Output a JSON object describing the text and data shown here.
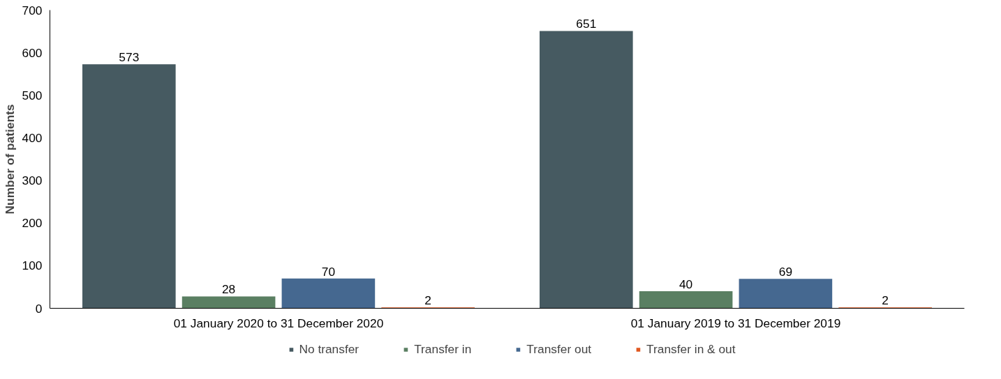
{
  "chart_data": {
    "type": "bar",
    "ylabel": "Number of patients",
    "categories": [
      "01 January 2020 to 31 December 2020",
      "01 January 2019 to 31 December 2019"
    ],
    "series": [
      {
        "name": "No transfer",
        "color": "#465a61",
        "values": [
          573,
          651
        ]
      },
      {
        "name": "Transfer in",
        "color": "#5a7f62",
        "values": [
          28,
          40
        ]
      },
      {
        "name": "Transfer out",
        "color": "#456890",
        "values": [
          70,
          69
        ]
      },
      {
        "name": "Transfer in & out",
        "color": "#e0571f",
        "values": [
          2,
          2
        ]
      }
    ],
    "ylim": [
      0,
      700
    ],
    "yticks": [
      0,
      100,
      200,
      300,
      400,
      500,
      600,
      700
    ],
    "data_labels": true,
    "grid": false,
    "legend": "bottom"
  }
}
